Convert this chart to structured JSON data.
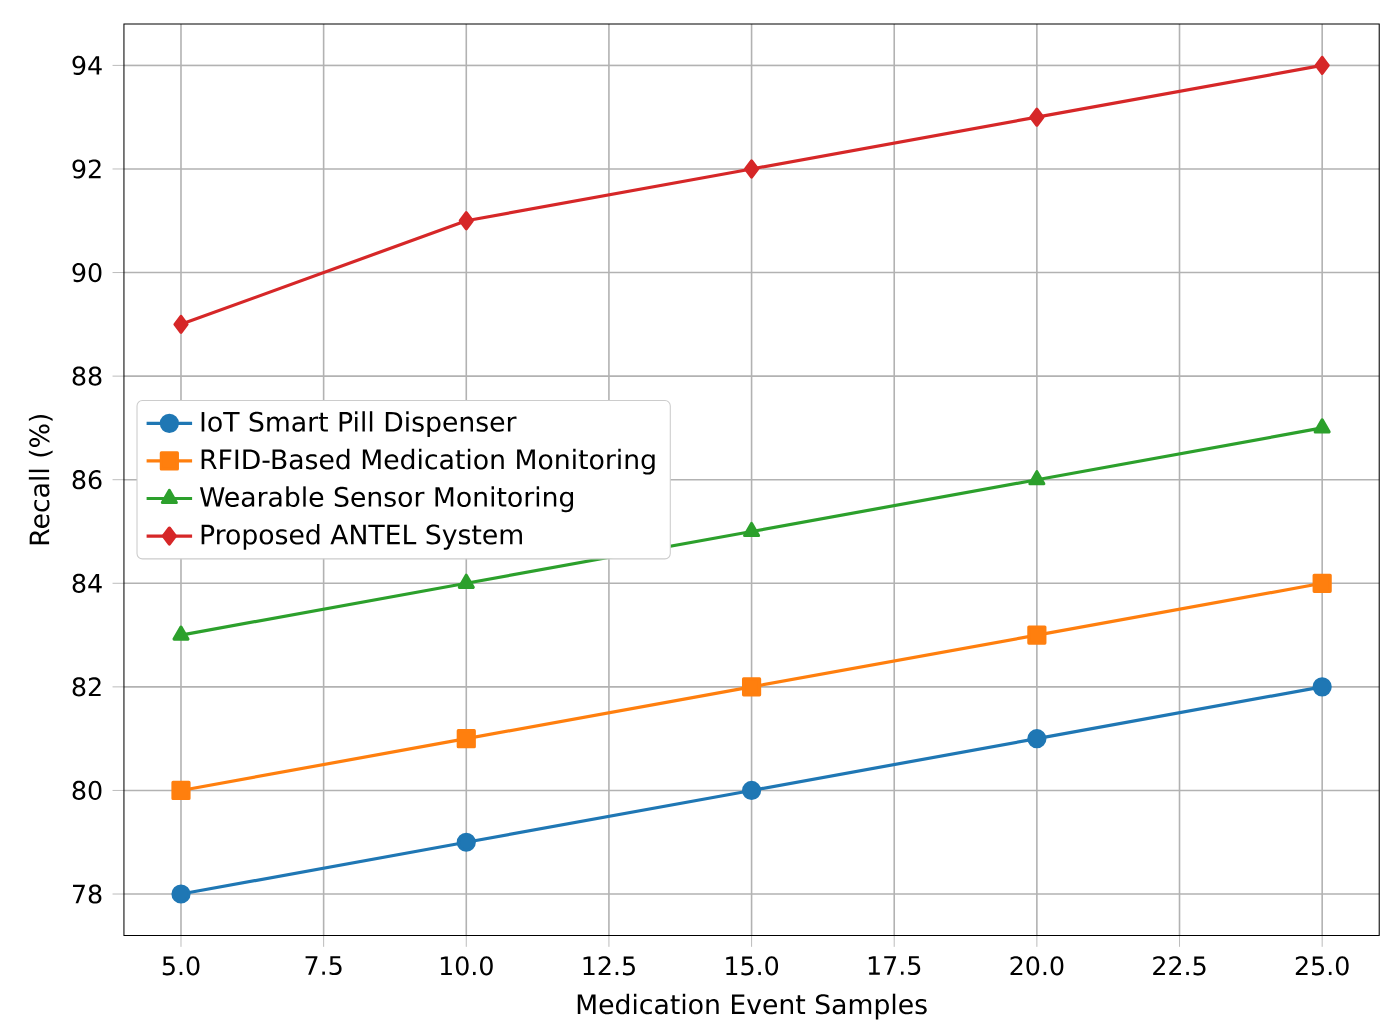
{
  "chart_data": {
    "type": "line",
    "xlabel": "Medication Event Samples",
    "ylabel": "Recall (%)",
    "x": [
      5,
      10,
      15,
      20,
      25
    ],
    "series": [
      {
        "name": "IoT Smart Pill Dispenser",
        "color": "#1f77b4",
        "marker": "circle",
        "values": [
          78,
          79,
          80,
          81,
          82
        ]
      },
      {
        "name": "RFID-Based Medication Monitoring",
        "color": "#ff7f0e",
        "marker": "square",
        "values": [
          80,
          81,
          82,
          83,
          84
        ]
      },
      {
        "name": "Wearable Sensor Monitoring",
        "color": "#2ca02c",
        "marker": "triangle",
        "values": [
          83,
          84,
          85,
          86,
          87
        ]
      },
      {
        "name": "Proposed ANTEL System",
        "color": "#d62728",
        "marker": "diamond",
        "values": [
          89,
          91,
          92,
          93,
          94
        ]
      }
    ],
    "xlim": [
      4,
      26
    ],
    "ylim": [
      77.2,
      94.8
    ],
    "xticks": [
      {
        "value": 5,
        "label": "5.0"
      },
      {
        "value": 7.5,
        "label": "7.5"
      },
      {
        "value": 10,
        "label": "10.0"
      },
      {
        "value": 12.5,
        "label": "12.5"
      },
      {
        "value": 15,
        "label": "15.0"
      },
      {
        "value": 17.5,
        "label": "17.5"
      },
      {
        "value": 20,
        "label": "20.0"
      },
      {
        "value": 22.5,
        "label": "22.5"
      },
      {
        "value": 25,
        "label": "25.0"
      }
    ],
    "yticks": [
      78,
      80,
      82,
      84,
      86,
      88,
      90,
      92,
      94
    ],
    "grid": true,
    "legend": "left",
    "line_style": "solid"
  }
}
